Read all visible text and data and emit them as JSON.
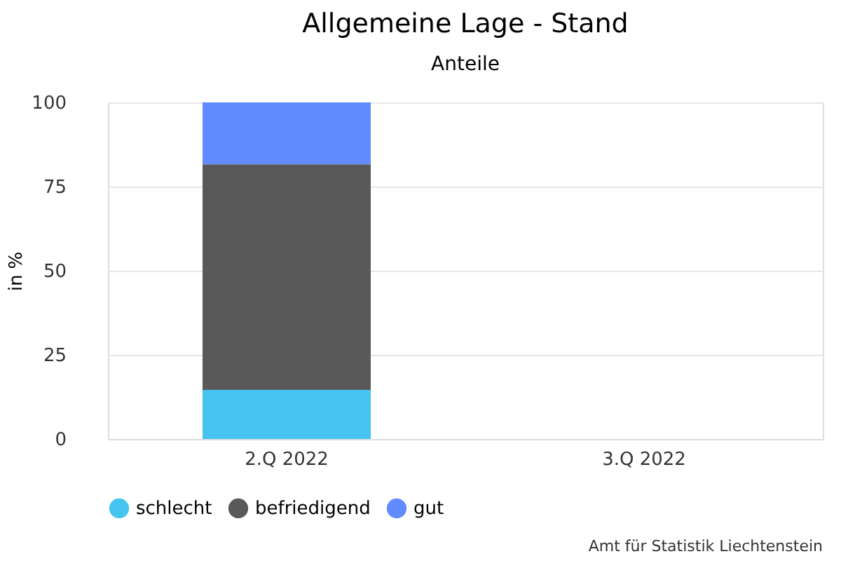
{
  "chart_data": {
    "type": "bar",
    "stacked": true,
    "title": "Allgemeine Lage - Stand",
    "subtitle": "Anteile",
    "ylabel": "in %",
    "categories": [
      "2.Q 2022",
      "3.Q 2022"
    ],
    "series": [
      {
        "name": "schlecht",
        "color": "#45c4f0",
        "values": [
          14.6,
          null
        ]
      },
      {
        "name": "befriedigend",
        "color": "#595959",
        "values": [
          67.0,
          null
        ]
      },
      {
        "name": "gut",
        "color": "#618cff",
        "values": [
          18.4,
          null
        ]
      }
    ],
    "ylim": [
      0,
      100
    ],
    "yticks": [
      0,
      25,
      50,
      75,
      100
    ],
    "grid": "y",
    "legend": "bottom",
    "annotations": [
      "Amt für Statistik Liechtenstein"
    ]
  }
}
